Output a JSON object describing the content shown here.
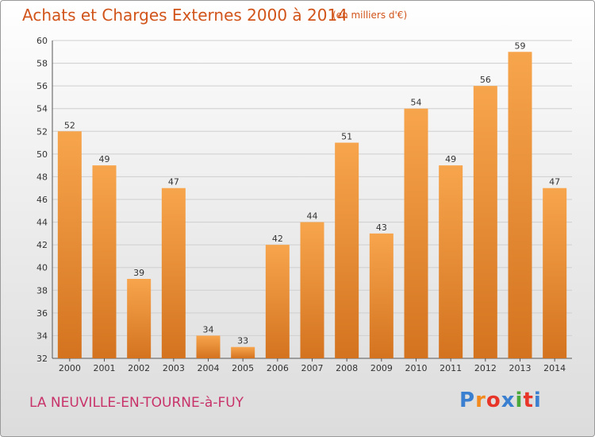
{
  "header": {
    "title": "Achats et Charges Externes 2000 à 2014",
    "subtitle": "(en milliers d'€)"
  },
  "footer": {
    "commune": "LA NEUVILLE-EN-TOURNE-à-FUY",
    "logo": {
      "letters": [
        "P",
        "r",
        "o",
        "x",
        "i",
        "t",
        "i"
      ]
    }
  },
  "colors": {
    "bar_light": "#f7a54d",
    "bar_dark": "#d4731f",
    "title": "#d1541a",
    "commune": "#c8336a",
    "logo": [
      "#3a7fd0",
      "#f28a1e",
      "#e8352a",
      "#3a7fd0",
      "#4aa83a",
      "#e8352a",
      "#3a7fd0"
    ]
  },
  "chart_data": {
    "type": "bar",
    "categories": [
      "2000",
      "2001",
      "2002",
      "2003",
      "2004",
      "2005",
      "2006",
      "2007",
      "2008",
      "2009",
      "2010",
      "2011",
      "2012",
      "2013",
      "2014"
    ],
    "values": [
      52,
      49,
      39,
      47,
      34,
      33,
      42,
      44,
      51,
      43,
      54,
      49,
      56,
      59,
      47
    ],
    "ylim": [
      32,
      60
    ],
    "yticks": [
      "32",
      "34",
      "36",
      "38",
      "40",
      "42",
      "44",
      "46",
      "48",
      "50",
      "52",
      "54",
      "56",
      "58",
      "60"
    ],
    "grid": true
  }
}
